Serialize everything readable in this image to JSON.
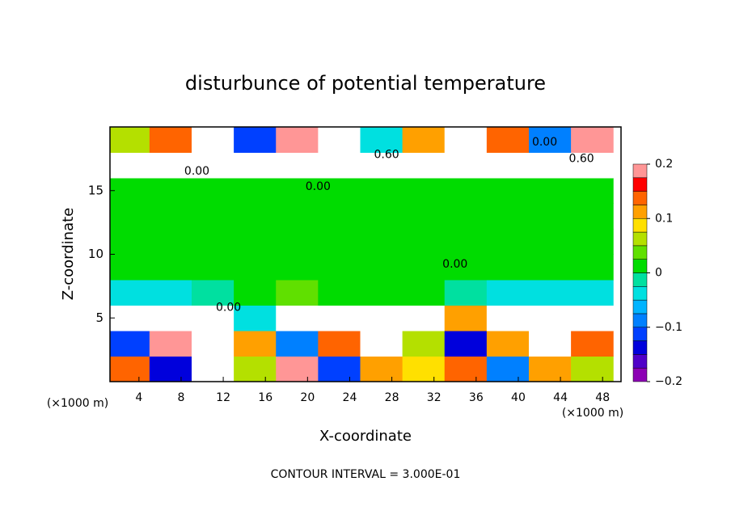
{
  "chart_data": {
    "type": "heatmap",
    "title": "disturbunce of potential temperature",
    "xlabel": "X-coordinate",
    "ylabel": "Z-coordinate",
    "x_unit": "(×1000 m)",
    "footer": "CONTOUR INTERVAL = 3.000E-01",
    "xlim": [
      1.25,
      49.75
    ],
    "ylim": [
      0,
      20
    ],
    "xticks": [
      4,
      8,
      12,
      16,
      20,
      24,
      28,
      32,
      36,
      40,
      44,
      48
    ],
    "yticks": [
      5,
      10,
      15
    ],
    "x": [
      3,
      7,
      11,
      15,
      19,
      23,
      27,
      31,
      35,
      39,
      43,
      47
    ],
    "y": [
      1,
      3,
      5,
      7,
      9,
      11,
      13,
      15,
      17,
      19
    ],
    "z": [
      [
        0.15,
        -0.15,
        0.3,
        0.05,
        0.2,
        -0.12,
        0.1,
        0.08,
        0.15,
        -0.1,
        0.12,
        0.05
      ],
      [
        -0.12,
        0.18,
        -0.3,
        0.12,
        -0.08,
        0.15,
        0.3,
        0.05,
        -0.15,
        0.1,
        -0.3,
        0.15
      ],
      [
        -0.3,
        0.3,
        -0.3,
        -0.05,
        0.3,
        -0.3,
        0.3,
        -0.3,
        0.1,
        -0.3,
        0.3,
        -0.3
      ],
      [
        -0.03,
        -0.03,
        -0.02,
        0.02,
        0.03,
        0.01,
        0.0,
        0.0,
        -0.02,
        -0.03,
        -0.03,
        -0.03
      ],
      [
        0.0,
        0.01,
        0.01,
        0.02,
        0.02,
        0.01,
        0.01,
        0.01,
        0.01,
        0.0,
        0.0,
        0.0
      ],
      [
        0.01,
        0.01,
        0.01,
        0.01,
        0.01,
        0.01,
        0.01,
        0.01,
        0.01,
        0.01,
        0.01,
        0.01
      ],
      [
        0.01,
        0.01,
        0.01,
        0.01,
        0.01,
        0.01,
        0.01,
        0.01,
        0.01,
        0.01,
        0.01,
        0.01
      ],
      [
        0.01,
        0.01,
        0.01,
        0.02,
        0.01,
        0.01,
        0.01,
        0.01,
        0.01,
        0.01,
        0.01,
        0.01
      ],
      [
        -0.3,
        0.3,
        -0.3,
        0.3,
        -0.3,
        0.3,
        -0.3,
        0.3,
        -0.3,
        0.3,
        -0.3,
        0.3
      ],
      [
        0.05,
        0.15,
        0.3,
        -0.12,
        0.18,
        0.3,
        -0.05,
        0.1,
        0.3,
        0.15,
        -0.1,
        0.2
      ]
    ],
    "clim": [
      -0.2,
      0.2
    ],
    "cticks": [
      {
        "value": -0.2,
        "label": "−0.2"
      },
      {
        "value": -0.1,
        "label": "−0.1"
      },
      0,
      0.1,
      0.2
    ],
    "colors": [
      "#8c00b4",
      "#5000c8",
      "#0000dc",
      "#0040ff",
      "#0080ff",
      "#00b4ff",
      "#00e0e0",
      "#00e0a0",
      "#00dc00",
      "#60e000",
      "#b4e000",
      "#ffe000",
      "#ffa000",
      "#ff6400",
      "#ff0000",
      "#ff9696"
    ],
    "out_of_range_color": "#ffffff",
    "annotations": [
      {
        "text": "0.00",
        "x": 21,
        "y": 15.3
      },
      {
        "text": "0.00",
        "x": 34,
        "y": 9.2
      },
      {
        "text": "0.00",
        "x": 12.5,
        "y": 5.8
      },
      {
        "text": "0.00",
        "x": 9.5,
        "y": 16.5
      },
      {
        "text": "0.60",
        "x": 27.5,
        "y": 17.8
      },
      {
        "text": "0.60",
        "x": 46,
        "y": 17.5
      },
      {
        "text": "0.00",
        "x": 42.5,
        "y": 18.8
      }
    ]
  }
}
